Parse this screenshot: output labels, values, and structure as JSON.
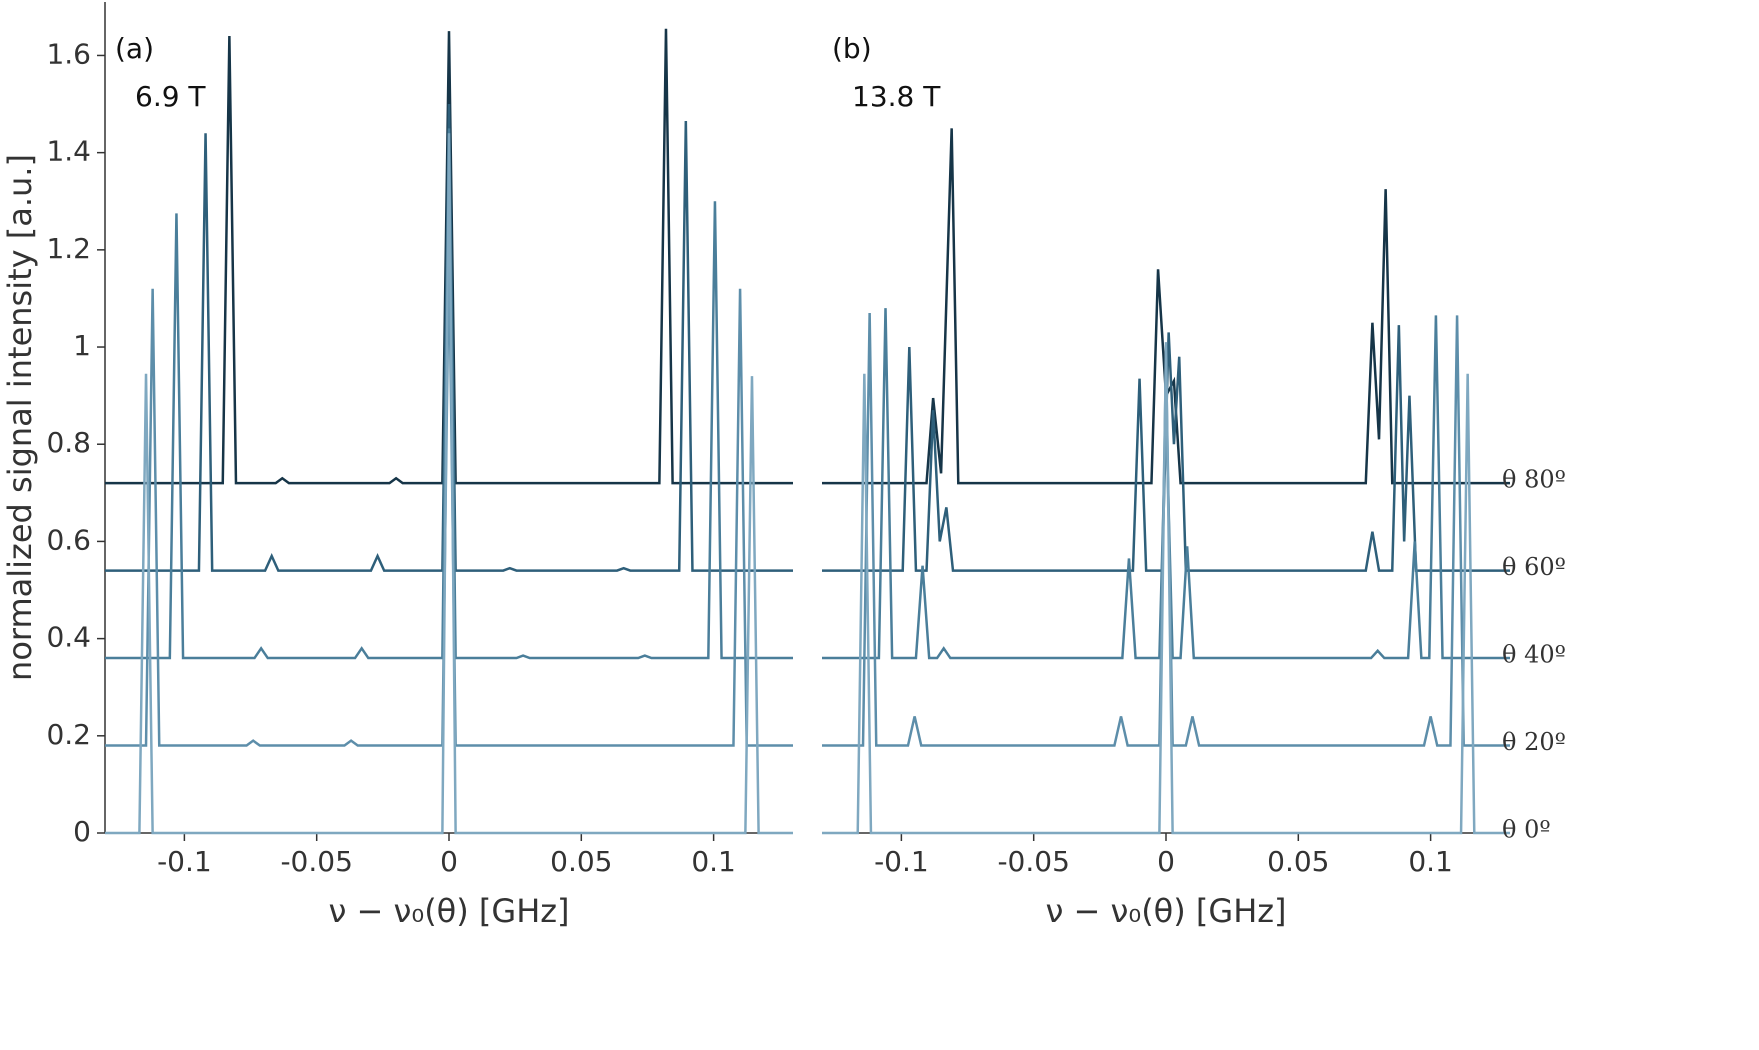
{
  "chart_data": [
    {
      "type": "line",
      "label": "(a)",
      "annotation": "6.9 T",
      "xlabel": "ν − ν₀(θ) [GHz]",
      "ylabel": "normalized signal intensity [a.u.]",
      "xlim": [
        -0.13,
        0.13
      ],
      "xticks": [
        -0.1,
        -0.05,
        0,
        0.05,
        0.1
      ],
      "ylim": [
        0,
        1.71
      ],
      "yticks": [
        0,
        0.2,
        0.4,
        0.6,
        0.8,
        1,
        1.2,
        1.4,
        1.6
      ],
      "series": [
        {
          "color": "#163548",
          "x": [
            -0.13,
            -0.0855,
            -0.083,
            -0.0805,
            -0.0655,
            -0.063,
            -0.0605,
            -0.0225,
            -0.02,
            -0.0175,
            -0.0025,
            0,
            0.0025,
            0.0795,
            0.082,
            0.0845,
            0.13
          ],
          "values": [
            0.72,
            0.72,
            1.64,
            0.72,
            0.72,
            0.73,
            0.72,
            0.72,
            0.73,
            0.72,
            0.72,
            1.65,
            0.72,
            0.72,
            1.655,
            0.72,
            0.72
          ]
        },
        {
          "color": "#2e5f7a",
          "x": [
            -0.13,
            -0.0945,
            -0.092,
            -0.0895,
            -0.0695,
            -0.067,
            -0.0645,
            -0.0295,
            -0.027,
            -0.0245,
            -0.0025,
            0,
            0.0025,
            0.0205,
            0.023,
            0.0255,
            0.0635,
            0.066,
            0.0685,
            0.087,
            0.0895,
            0.092,
            0.13
          ],
          "values": [
            0.54,
            0.54,
            1.44,
            0.54,
            0.54,
            0.57,
            0.54,
            0.54,
            0.57,
            0.54,
            0.54,
            1.5,
            0.54,
            0.54,
            0.545,
            0.54,
            0.54,
            0.545,
            0.54,
            0.54,
            1.465,
            0.54,
            0.54
          ]
        },
        {
          "color": "#4a7e9a",
          "x": [
            -0.13,
            -0.1055,
            -0.103,
            -0.1005,
            -0.0735,
            -0.071,
            -0.0685,
            -0.0355,
            -0.033,
            -0.0305,
            -0.0025,
            0,
            0.0025,
            0.0255,
            0.028,
            0.0305,
            0.0715,
            0.074,
            0.0765,
            0.098,
            0.1005,
            0.103,
            0.13
          ],
          "values": [
            0.36,
            0.36,
            1.275,
            0.36,
            0.36,
            0.38,
            0.36,
            0.36,
            0.38,
            0.36,
            0.36,
            1.45,
            0.36,
            0.36,
            0.365,
            0.36,
            0.36,
            0.365,
            0.36,
            0.36,
            1.3,
            0.36,
            0.36
          ]
        },
        {
          "color": "#5d8eaa",
          "x": [
            -0.13,
            -0.1145,
            -0.112,
            -0.1095,
            -0.0765,
            -0.074,
            -0.0715,
            -0.0395,
            -0.037,
            -0.0345,
            -0.0025,
            0,
            0.0025,
            0.1075,
            0.11,
            0.1125,
            0.13
          ],
          "values": [
            0.18,
            0.18,
            1.12,
            0.18,
            0.18,
            0.19,
            0.18,
            0.18,
            0.19,
            0.18,
            0.18,
            1.2,
            0.18,
            0.18,
            1.12,
            0.18,
            0.18
          ]
        },
        {
          "color": "#7fa8c0",
          "x": [
            -0.13,
            -0.117,
            -0.1145,
            -0.112,
            -0.0025,
            0,
            0.0025,
            0.112,
            0.1145,
            0.117,
            0.13
          ],
          "values": [
            0,
            0,
            0.945,
            0,
            0,
            1.44,
            0,
            0,
            0.94,
            0,
            0
          ]
        }
      ]
    },
    {
      "type": "line",
      "label": "(b)",
      "annotation": "13.8 T",
      "xlabel": "ν − ν₀(θ) [GHz]",
      "xlim": [
        -0.13,
        0.13
      ],
      "xticks": [
        -0.1,
        -0.05,
        0,
        0.05,
        0.1
      ],
      "ylim": [
        0,
        1.71
      ],
      "series": [
        {
          "name": "θ 80º",
          "color": "#163548",
          "x": [
            -0.13,
            -0.0905,
            -0.088,
            -0.085,
            -0.081,
            -0.0785,
            -0.0055,
            -0.003,
            0,
            0.003,
            0.0055,
            0.0755,
            0.078,
            0.0805,
            0.083,
            0.0855,
            0.13
          ],
          "values": [
            0.72,
            0.72,
            0.895,
            0.74,
            1.45,
            0.72,
            0.72,
            1.16,
            0.9,
            0.93,
            0.72,
            0.72,
            1.05,
            0.81,
            1.325,
            0.72,
            0.72
          ]
        },
        {
          "name": "θ 60º",
          "color": "#2e5f7a",
          "x": [
            -0.13,
            -0.0995,
            -0.097,
            -0.0945,
            -0.0905,
            -0.088,
            -0.0855,
            -0.083,
            -0.0805,
            -0.0125,
            -0.01,
            -0.0075,
            -0.0015,
            0.001,
            0.003,
            0.005,
            0.0075,
            0.0755,
            0.078,
            0.0805,
            0.0855,
            0.088,
            0.09,
            0.092,
            0.0945,
            0.13
          ],
          "values": [
            0.54,
            0.54,
            1.0,
            0.54,
            0.54,
            0.87,
            0.6,
            0.67,
            0.54,
            0.54,
            0.935,
            0.54,
            0.54,
            1.03,
            0.8,
            0.98,
            0.54,
            0.54,
            0.62,
            0.54,
            0.54,
            1.045,
            0.6,
            0.9,
            0.54,
            0.54
          ]
        },
        {
          "name": "θ 40º",
          "color": "#4a7e9a",
          "x": [
            -0.13,
            -0.1085,
            -0.106,
            -0.1035,
            -0.0945,
            -0.092,
            -0.0895,
            -0.0865,
            -0.084,
            -0.0815,
            -0.0165,
            -0.014,
            -0.0115,
            -0.0025,
            0,
            0.0025,
            0.0055,
            0.008,
            0.0105,
            0.0775,
            0.08,
            0.0825,
            0.0915,
            0.094,
            0.0965,
            0.0995,
            0.102,
            0.1045,
            0.13
          ],
          "values": [
            0.36,
            0.36,
            1.08,
            0.36,
            0.36,
            0.55,
            0.36,
            0.36,
            0.38,
            0.36,
            0.36,
            0.565,
            0.36,
            0.36,
            0.87,
            0.36,
            0.36,
            0.59,
            0.36,
            0.36,
            0.375,
            0.36,
            0.36,
            0.6,
            0.36,
            0.36,
            1.065,
            0.36,
            0.36
          ]
        },
        {
          "name": "θ 20º",
          "color": "#5d8eaa",
          "x": [
            -0.13,
            -0.1145,
            -0.112,
            -0.1095,
            -0.0975,
            -0.095,
            -0.0925,
            -0.0195,
            -0.017,
            -0.0145,
            -0.0025,
            0,
            0.0025,
            0.0075,
            0.01,
            0.0125,
            0.0975,
            0.1,
            0.1025,
            0.1075,
            0.11,
            0.1125,
            0.13
          ],
          "values": [
            0.18,
            0.18,
            1.07,
            0.18,
            0.18,
            0.24,
            0.18,
            0.18,
            0.24,
            0.18,
            0.18,
            0.98,
            0.18,
            0.18,
            0.24,
            0.18,
            0.18,
            0.24,
            0.18,
            0.18,
            1.065,
            0.18,
            0.18
          ]
        },
        {
          "name": "θ 0º",
          "color": "#7fa8c0",
          "x": [
            -0.13,
            -0.1165,
            -0.114,
            -0.1115,
            -0.0025,
            0,
            0.0025,
            0.1115,
            0.114,
            0.1165,
            0.13
          ],
          "values": [
            0,
            0,
            0.945,
            0,
            0,
            1.01,
            0,
            0,
            0.945,
            0,
            0
          ]
        }
      ]
    }
  ]
}
